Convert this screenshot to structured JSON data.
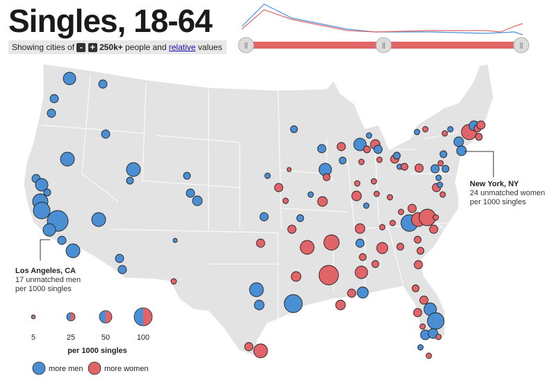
{
  "title": "Singles, 18-64",
  "controls": {
    "prefix": "Showing cities of",
    "minus_label": "-",
    "plus_label": "+",
    "threshold": "250k+",
    "middle": "people and",
    "mode_link": "relative",
    "suffix": "values"
  },
  "age_slider": {
    "range_start_age": 18,
    "range_end_age": 64,
    "handle_start_glyph": "⫼",
    "handle_mid_glyph": "⫼",
    "handle_end_glyph": "⫼",
    "track_color": "#e06666",
    "men_line_color": "#4a90d9",
    "women_line_color": "#e06666"
  },
  "callouts": [
    {
      "city": "New York, NY",
      "line1": "24 unmatched women",
      "line2": "per 1000 singles"
    },
    {
      "city": "Los Angeles, CA",
      "line1": "17 unmatched men",
      "line2": "per 1000 singles"
    }
  ],
  "legend": {
    "size_values": [
      "5",
      "25",
      "50",
      "100"
    ],
    "size_caption": "per 1000 singles",
    "men_label": "more men",
    "women_label": "more women"
  },
  "colors": {
    "men": "#4a8fd4",
    "women": "#e06468",
    "land": "#e3e3e3",
    "borders": "#ffffff"
  }
}
